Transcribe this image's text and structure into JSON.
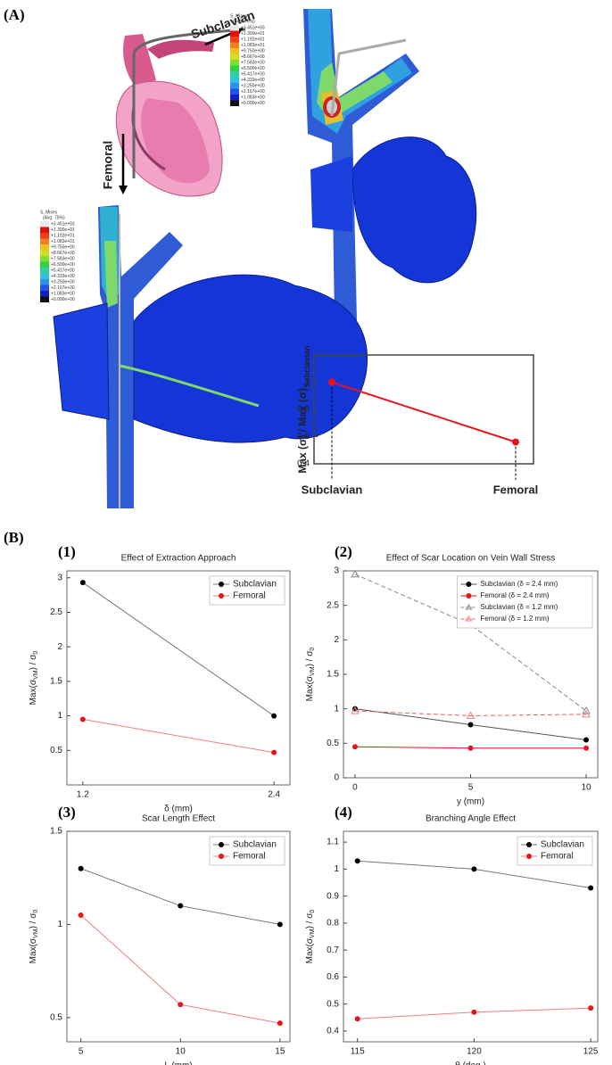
{
  "panel_a": {
    "label": "(A)",
    "arrow_top": "Subclavian",
    "arrow_left": "Femoral",
    "contour_legend": {
      "title": "S, Mises",
      "subtitle": "(Avg: 75%)",
      "values": [
        "+3.451e+03",
        "+1.300e+01",
        "+1.192e+01",
        "+1.083e+01",
        "+9.750e+00",
        "+8.667e+00",
        "+7.583e+00",
        "+6.500e+00",
        "+5.417e+00",
        "+4.333e+00",
        "+3.250e+00",
        "+2.167e+00",
        "+1.083e+00",
        "+0.000e+00"
      ]
    }
  },
  "panel_b": {
    "label": "(B)"
  },
  "chart_data": [
    {
      "type": "line",
      "categories": [
        "Subclavian",
        "Femoral"
      ],
      "y_label": [
        "Max (σ) / Max (σ)",
        "Subclavian"
      ],
      "series": [
        {
          "color": "#e8141b",
          "values": [
            1,
            0.56
          ]
        }
      ],
      "ylim": [
        0.4,
        1.2
      ],
      "yticks": [
        0.4,
        0.6,
        0.8,
        1
      ]
    },
    {
      "type": "line",
      "panel_label": "(1)",
      "title": "Effect of Extraction Approach",
      "x_label": "δ (mm)",
      "y_label": [
        "Max(σ",
        "VM",
        ") / σ",
        "0"
      ],
      "x": [
        1.2,
        2.4
      ],
      "xlim": [
        1.1,
        2.5
      ],
      "xticks": [
        1.2,
        2.4
      ],
      "ylim": [
        0,
        3.1
      ],
      "yticks": [
        0.5,
        1,
        1.5,
        2,
        2.5,
        3
      ],
      "legend": "upper right",
      "series": [
        {
          "name": "Subclavian",
          "color": "#000000",
          "line_color": "#777777",
          "marker": "circle",
          "values": [
            2.93,
            1.0
          ]
        },
        {
          "name": "Femoral",
          "color": "#e8141b",
          "line_color": "#f08080",
          "marker": "circle",
          "values": [
            0.95,
            0.47
          ]
        }
      ]
    },
    {
      "type": "line",
      "panel_label": "(2)",
      "title": "Effect of Scar Location on Vein Wall Stress",
      "x_label": "y (mm)",
      "y_label": [
        "Max(σ",
        "VM",
        ") / σ",
        "0"
      ],
      "x": [
        0,
        5,
        10
      ],
      "xlim": [
        -0.5,
        10.5
      ],
      "xticks": [
        0,
        5,
        10
      ],
      "ylim": [
        0,
        3
      ],
      "yticks": [
        0,
        0.5,
        1,
        1.5,
        2,
        2.5,
        3
      ],
      "legend": "upper right",
      "series": [
        {
          "name": "Subclavian (δ = 2.4 mm)",
          "color": "#000000",
          "line_color": "#555555",
          "marker": "circle",
          "values": [
            1.0,
            0.77,
            0.55
          ]
        },
        {
          "name": "Femoral (δ = 2.4 mm)",
          "color": "#e8141b",
          "line_color": "#e8141b",
          "marker": "circle",
          "values": [
            0.45,
            0.43,
            0.43
          ]
        },
        {
          "name": "Subclavian (δ = 1.2 mm)",
          "color": "#888888",
          "line_color": "#888888",
          "marker": "triangle",
          "dashed": true,
          "values": [
            2.95,
            2.22,
            0.97
          ]
        },
        {
          "name": "Femoral (δ = 1.2 mm)",
          "color": "#f08080",
          "line_color": "#f06060",
          "marker": "triangle",
          "dashed": true,
          "values": [
            0.97,
            0.9,
            0.92
          ]
        }
      ]
    },
    {
      "type": "line",
      "panel_label": "(3)",
      "title": "Scar Length Effect",
      "x_label": "L (mm)",
      "y_label": [
        "Max(σ",
        "VM",
        ") / σ",
        "0"
      ],
      "x": [
        5,
        10,
        15
      ],
      "xlim": [
        4.3,
        15.5
      ],
      "xticks": [
        5,
        10,
        15
      ],
      "ylim": [
        0.37,
        1.5
      ],
      "yticks": [
        0.5,
        1,
        1.5
      ],
      "legend": "upper right",
      "series": [
        {
          "name": "Subclavian",
          "color": "#000000",
          "line_color": "#777777",
          "marker": "circle",
          "values": [
            1.3,
            1.1,
            1.0
          ]
        },
        {
          "name": "Femoral",
          "color": "#e8141b",
          "line_color": "#f08080",
          "marker": "circle",
          "values": [
            1.05,
            0.57,
            0.47
          ]
        }
      ]
    },
    {
      "type": "line",
      "panel_label": "(4)",
      "title": "Branching Angle Effect",
      "x_label": "θ (deg.)",
      "y_label": [
        "Max(σ",
        "VM",
        ") / σ",
        "0"
      ],
      "x": [
        115,
        120,
        125
      ],
      "xlim": [
        114.4,
        125.3
      ],
      "xticks": [
        115,
        120,
        125
      ],
      "ylim": [
        0.36,
        1.14
      ],
      "yticks": [
        0.4,
        0.5,
        0.6,
        0.7,
        0.8,
        0.9,
        1,
        1.1
      ],
      "legend": "upper right",
      "series": [
        {
          "name": "Subclavian",
          "color": "#000000",
          "line_color": "#777777",
          "marker": "circle",
          "values": [
            1.03,
            1.0,
            0.93
          ]
        },
        {
          "name": "Femoral",
          "color": "#e8141b",
          "line_color": "#f08080",
          "marker": "circle",
          "values": [
            0.445,
            0.47,
            0.485
          ]
        }
      ]
    }
  ]
}
